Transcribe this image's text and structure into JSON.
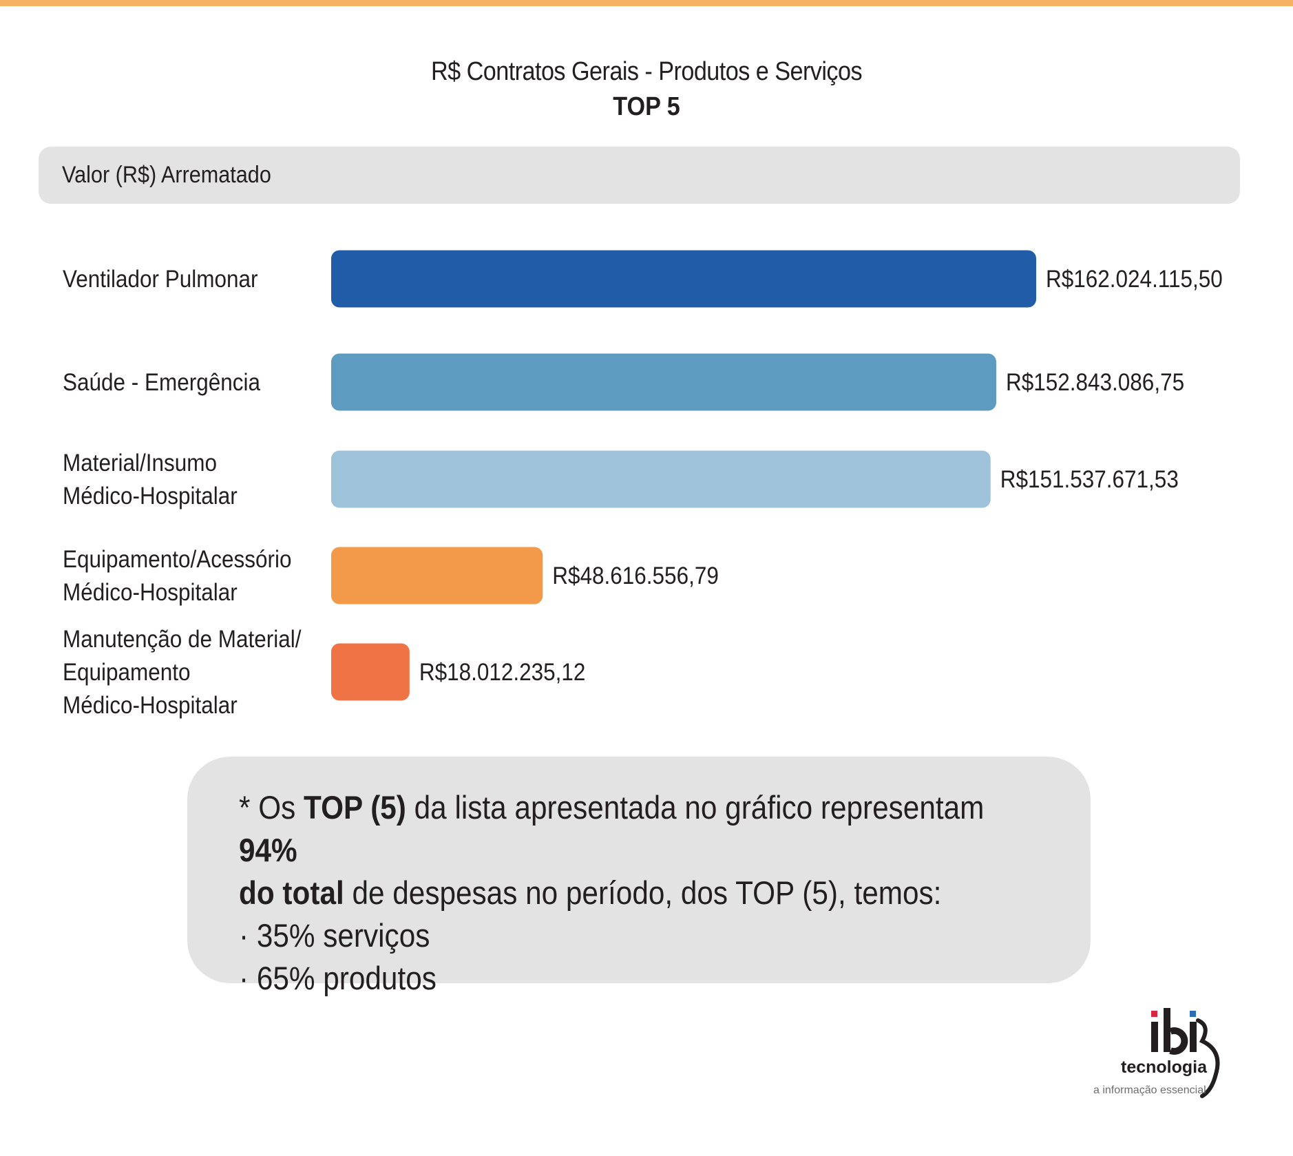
{
  "page": {
    "title": "R$ Contratos Gerais - Produtos e Serviços",
    "subtitle": "TOP 5",
    "header_label": "Valor (R$) Arrematado"
  },
  "chart_data": {
    "type": "bar",
    "orientation": "horizontal",
    "title": "R$ Contratos Gerais - Produtos e Serviços",
    "subtitle": "TOP 5",
    "ylabel": "Valor (R$) Arrematado",
    "categories": [
      [
        "Ventilador Pulmonar"
      ],
      [
        "Saúde - Emergência"
      ],
      [
        "Material/Insumo",
        "Médico-Hospitalar"
      ],
      [
        "Equipamento/Acessório",
        "Médico-Hospitalar"
      ],
      [
        "Manutenção de Material/",
        "Equipamento",
        "Médico-Hospitalar"
      ]
    ],
    "values": [
      162024115.5,
      152843086.75,
      151537671.53,
      48616556.79,
      18012235.12
    ],
    "value_labels": [
      "R$162.024.115,50",
      "R$152.843.086,75",
      "R$151.537.671,53",
      "R$48.616.556,79",
      "R$18.012.235,12"
    ],
    "colors": [
      "#205ca7",
      "#5e9bc1",
      "#9ec2da",
      "#f39a4a",
      "#f07346"
    ],
    "xlim": [
      0,
      162024115.5
    ],
    "grid": false,
    "legend": "none"
  },
  "note": {
    "line1_prefix": "* Os ",
    "line1_bold": "TOP (5)",
    "line1_middle": " da lista apresentada no gráfico representam ",
    "line1_bold2": "94%",
    "line2_bold": "do total",
    "line2_rest": " de despesas no período, dos TOP (5), temos:",
    "line3": "· 35% serviços",
    "line4": "· 65% produtos"
  },
  "logo": {
    "brand": "ibi",
    "name": "tecnologia",
    "tagline": "a informação essencial",
    "colors": {
      "dot_left": "#d7263d",
      "dot_right": "#2a6fb8",
      "text": "#231f20",
      "tagline": "#6d6e71"
    }
  }
}
